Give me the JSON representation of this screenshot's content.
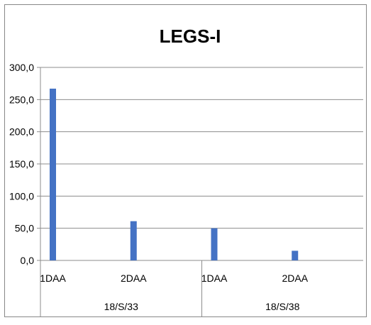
{
  "chart_data": {
    "type": "bar",
    "title": "LEGS-I",
    "xlabel": "",
    "ylabel": "",
    "ylim": [
      0,
      300
    ],
    "yticks": [
      "0,0",
      "50,0",
      "100,0",
      "150,0",
      "200,0",
      "250,0",
      "300,0"
    ],
    "categories": [
      "1DAA",
      "2DAA",
      "1DAA",
      "2DAA"
    ],
    "groups": [
      "18/S/33",
      "18/S/38"
    ],
    "values": [
      267,
      61,
      50,
      15
    ],
    "grid": true,
    "legend": "none",
    "bar_color": "#4472C4"
  }
}
